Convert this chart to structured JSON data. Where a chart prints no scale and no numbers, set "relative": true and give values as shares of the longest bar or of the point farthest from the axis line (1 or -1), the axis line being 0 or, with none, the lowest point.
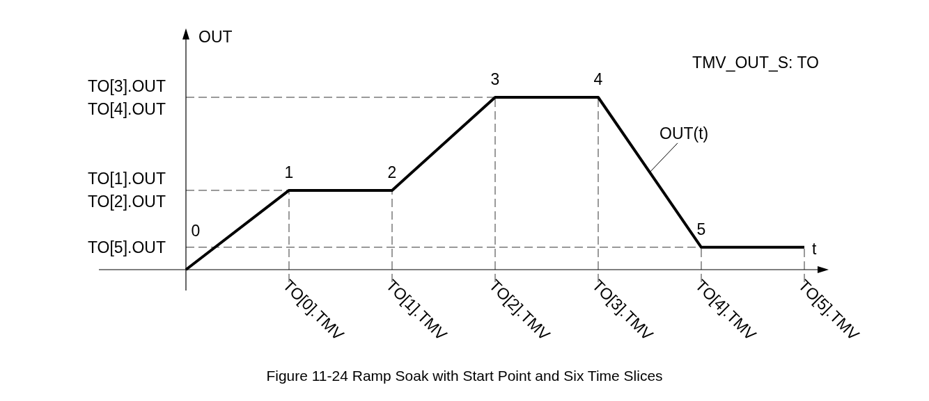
{
  "chart_data": {
    "type": "line",
    "relative": true,
    "xlabel": "t",
    "ylabel": "OUT",
    "categories": [
      null,
      "TO[0].TMV",
      "TO[1].TMV",
      "TO[2].TMV",
      "TO[3].TMV",
      "TO[4].TMV",
      "TO[5].TMV"
    ],
    "series": [
      {
        "color": "#000000",
        "values": [
          0,
          0.46,
          0.46,
          1,
          1,
          0.13,
          0.13
        ]
      }
    ],
    "grid": "x",
    "marker": "none",
    "line_style": "solid",
    "ref_lines": [
      {
        "axis": "y",
        "value": 1,
        "label": "TO[3].OUT\nTO[4].OUT",
        "line_style": "dashed"
      },
      {
        "axis": "y",
        "value": 0.46,
        "label": "TO[1].OUT\nTO[2].OUT",
        "line_style": "dashed"
      },
      {
        "axis": "y",
        "value": 0.13,
        "label": "TO[5].OUT",
        "line_style": "dashed"
      }
    ],
    "annotations": [
      "0",
      {
        "text": "1",
        "x": "TO[0].TMV",
        "y": 0.46
      },
      {
        "text": "2",
        "x": "TO[1].TMV",
        "y": 0.46
      },
      {
        "text": "3",
        "x": "TO[2].TMV",
        "y": 1
      },
      {
        "text": "4",
        "x": "TO[3].TMV",
        "y": 1
      },
      {
        "text": "5",
        "x": "TO[4].TMV",
        "y": 0.13
      },
      "OUT(t)",
      "TMV_OUT_S: TO",
      "Figure 11-24 Ramp Soak with Start Point and Six Time Slices"
    ]
  }
}
